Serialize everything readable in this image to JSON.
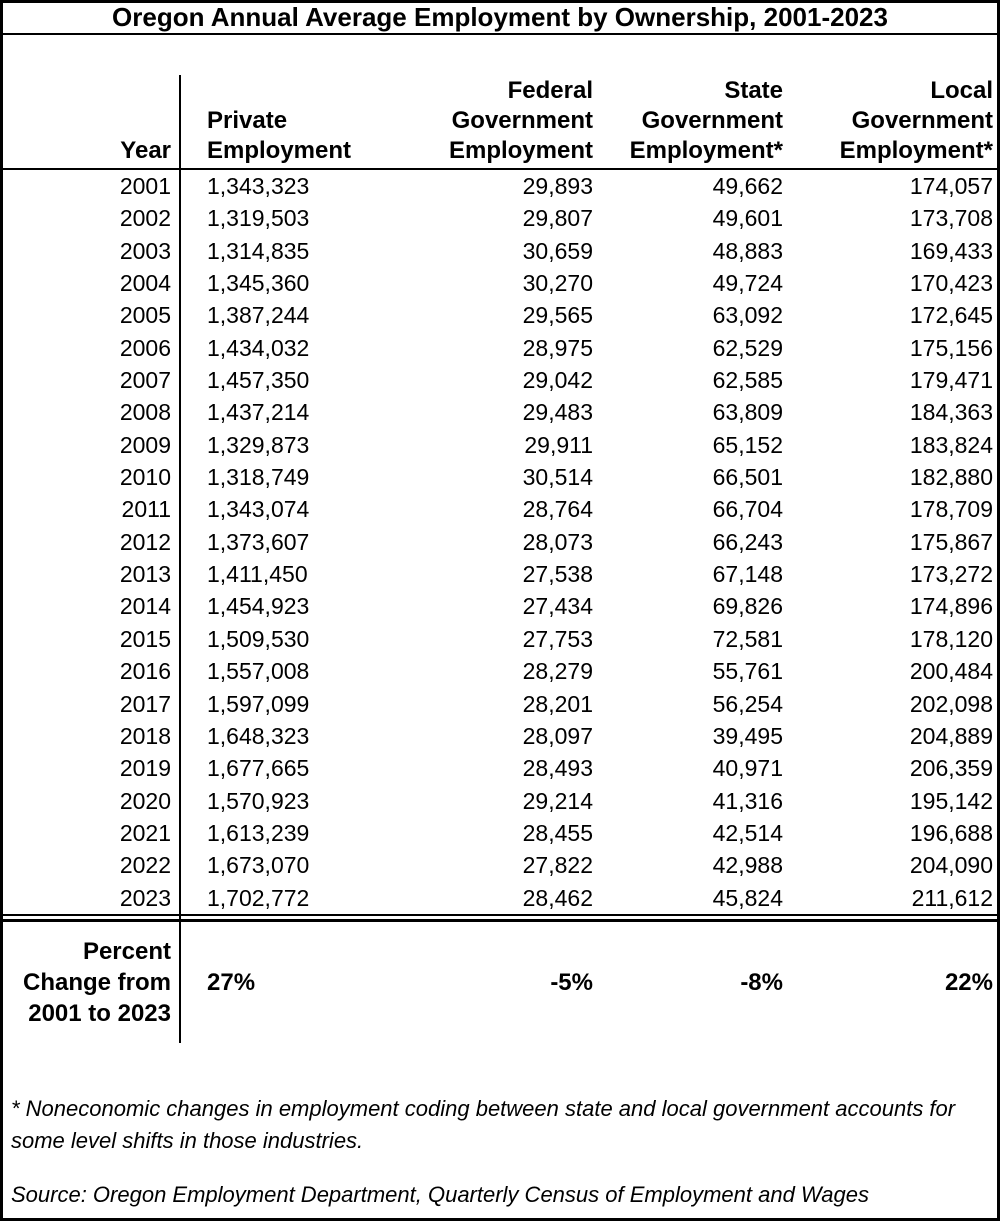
{
  "window": {
    "title": "Oregon Annual Average Employment by Ownership, 2001-2023"
  },
  "table": {
    "headers": {
      "year": "Year",
      "private": "Private\nEmployment",
      "federal": "Federal\nGovernment\nEmployment",
      "state": "State\nGovernment\nEmployment*",
      "local": "Local\nGovernment\nEmployment*"
    },
    "rows": [
      {
        "year": "2001",
        "private": "1,343,323",
        "federal": "29,893",
        "state": "49,662",
        "local": "174,057"
      },
      {
        "year": "2002",
        "private": "1,319,503",
        "federal": "29,807",
        "state": "49,601",
        "local": "173,708"
      },
      {
        "year": "2003",
        "private": "1,314,835",
        "federal": "30,659",
        "state": "48,883",
        "local": "169,433"
      },
      {
        "year": "2004",
        "private": "1,345,360",
        "federal": "30,270",
        "state": "49,724",
        "local": "170,423"
      },
      {
        "year": "2005",
        "private": "1,387,244",
        "federal": "29,565",
        "state": "63,092",
        "local": "172,645"
      },
      {
        "year": "2006",
        "private": "1,434,032",
        "federal": "28,975",
        "state": "62,529",
        "local": "175,156"
      },
      {
        "year": "2007",
        "private": "1,457,350",
        "federal": "29,042",
        "state": "62,585",
        "local": "179,471"
      },
      {
        "year": "2008",
        "private": "1,437,214",
        "federal": "29,483",
        "state": "63,809",
        "local": "184,363"
      },
      {
        "year": "2009",
        "private": "1,329,873",
        "federal": "29,911",
        "state": "65,152",
        "local": "183,824"
      },
      {
        "year": "2010",
        "private": "1,318,749",
        "federal": "30,514",
        "state": "66,501",
        "local": "182,880"
      },
      {
        "year": "2011",
        "private": "1,343,074",
        "federal": "28,764",
        "state": "66,704",
        "local": "178,709"
      },
      {
        "year": "2012",
        "private": "1,373,607",
        "federal": "28,073",
        "state": "66,243",
        "local": "175,867"
      },
      {
        "year": "2013",
        "private": "1,411,450",
        "federal": "27,538",
        "state": "67,148",
        "local": "173,272"
      },
      {
        "year": "2014",
        "private": "1,454,923",
        "federal": "27,434",
        "state": "69,826",
        "local": "174,896"
      },
      {
        "year": "2015",
        "private": "1,509,530",
        "federal": "27,753",
        "state": "72,581",
        "local": "178,120"
      },
      {
        "year": "2016",
        "private": "1,557,008",
        "federal": "28,279",
        "state": "55,761",
        "local": "200,484"
      },
      {
        "year": "2017",
        "private": "1,597,099",
        "federal": "28,201",
        "state": "56,254",
        "local": "202,098"
      },
      {
        "year": "2018",
        "private": "1,648,323",
        "federal": "28,097",
        "state": "39,495",
        "local": "204,889"
      },
      {
        "year": "2019",
        "private": "1,677,665",
        "federal": "28,493",
        "state": "40,971",
        "local": "206,359"
      },
      {
        "year": "2020",
        "private": "1,570,923",
        "federal": "29,214",
        "state": "41,316",
        "local": "195,142"
      },
      {
        "year": "2021",
        "private": "1,613,239",
        "federal": "28,455",
        "state": "42,514",
        "local": "196,688"
      },
      {
        "year": "2022",
        "private": "1,673,070",
        "federal": "27,822",
        "state": "42,988",
        "local": "204,090"
      },
      {
        "year": "2023",
        "private": "1,702,772",
        "federal": "28,462",
        "state": "45,824",
        "local": "211,612"
      }
    ],
    "percent_change": {
      "label": "Percent\nChange from\n2001 to 2023",
      "private": "27%",
      "federal": "-5%",
      "state": "-8%",
      "local": "22%"
    }
  },
  "notes": {
    "footnote": "* Noneconomic changes in employment coding between state and local government accounts for\nsome level shifts in those industries.",
    "source": "Source: Oregon Employment Department, Quarterly Census of Employment and Wages"
  },
  "colors": {
    "text": "#000000",
    "background": "#ffffff",
    "border": "#000000"
  }
}
